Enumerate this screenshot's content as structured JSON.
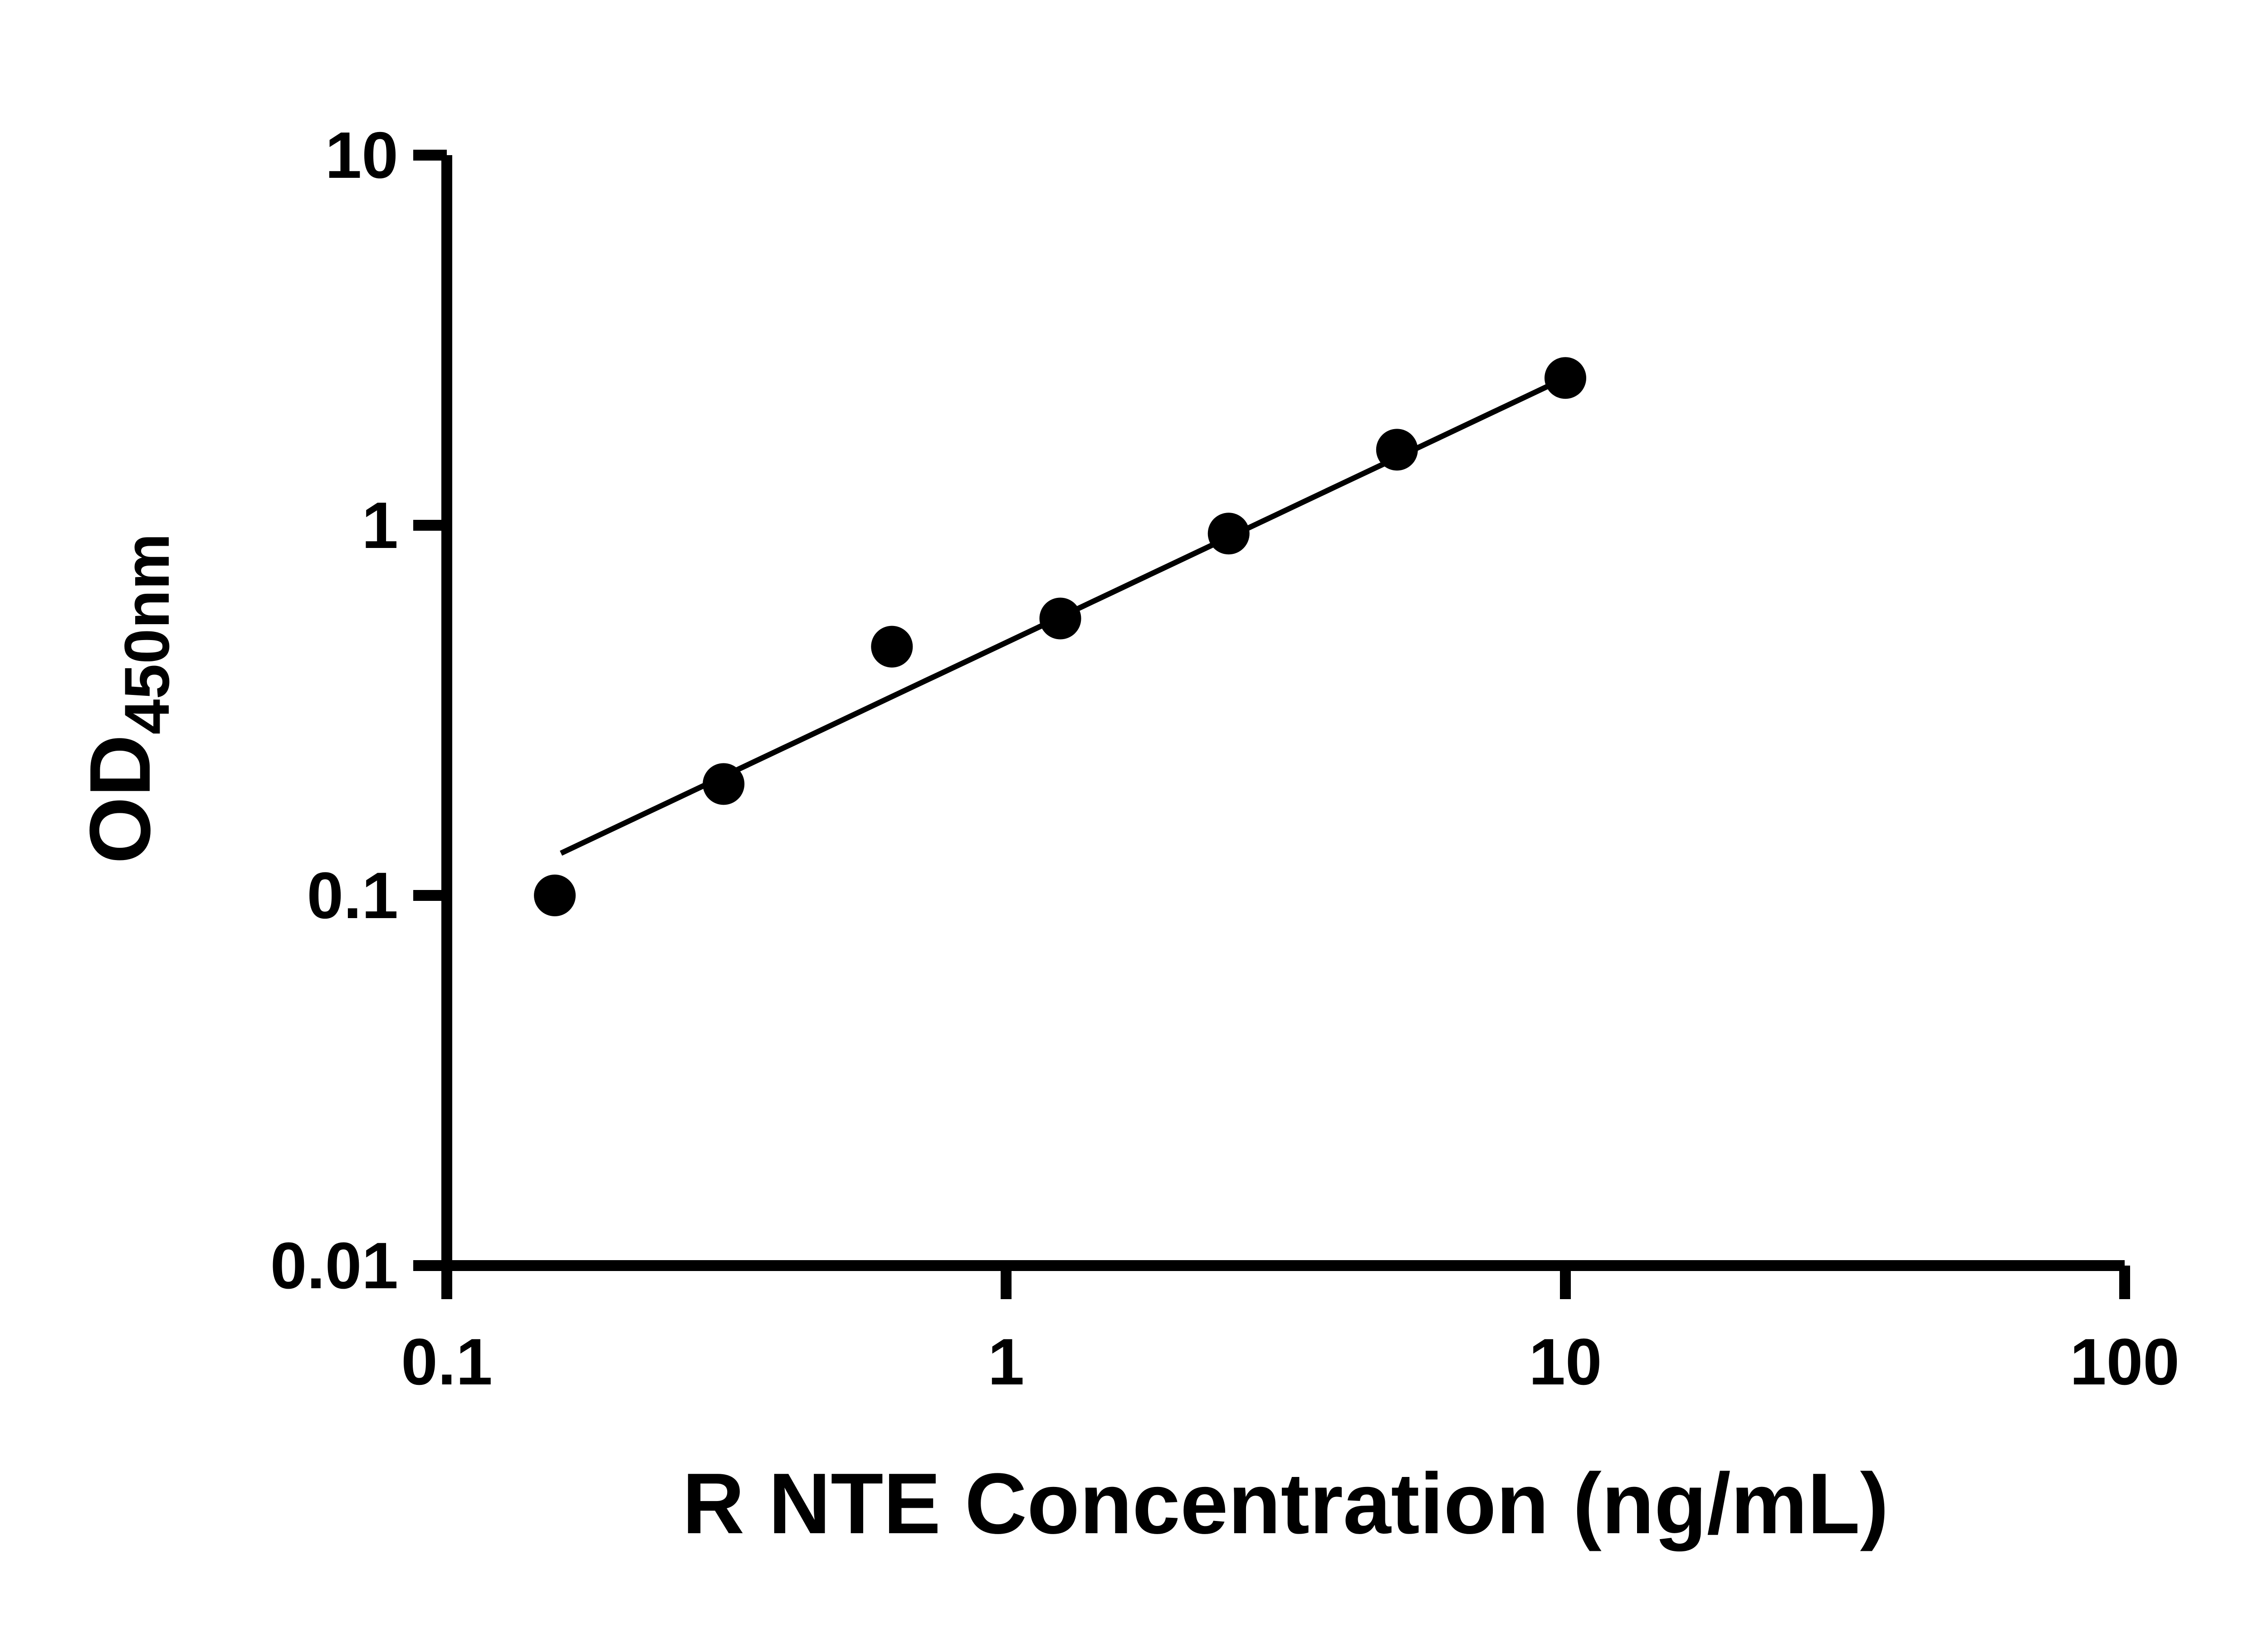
{
  "chart_data": {
    "type": "scatter",
    "title": "",
    "xlabel": "R NTE Concentration (ng/mL)",
    "ylabel": "OD450nm",
    "ylabel_main": "OD",
    "ylabel_sub": "450nm",
    "x_scale": "log",
    "y_scale": "log",
    "xlim": [
      0.1,
      100
    ],
    "ylim": [
      0.01,
      10
    ],
    "grid": false,
    "legend": false,
    "x_ticks": [
      {
        "value": 0.1,
        "label": "0.1"
      },
      {
        "value": 1,
        "label": "1"
      },
      {
        "value": 10,
        "label": "10"
      },
      {
        "value": 100,
        "label": "100"
      }
    ],
    "y_ticks": [
      {
        "value": 0.01,
        "label": "0.01"
      },
      {
        "value": 0.1,
        "label": "0.1"
      },
      {
        "value": 1,
        "label": "1"
      },
      {
        "value": 10,
        "label": "10"
      }
    ],
    "series": [
      {
        "name": "standard-curve-points",
        "x": [
          0.156,
          0.3125,
          0.625,
          1.25,
          2.5,
          5,
          10
        ],
        "y": [
          0.1,
          0.2,
          0.47,
          0.56,
          0.95,
          1.6,
          2.5
        ]
      }
    ],
    "fit_line": {
      "model": "power",
      "a": 0.482,
      "b": 0.715,
      "x_start": 0.16,
      "x_end": 10.3
    },
    "marker_color": "#000000",
    "line_color": "#000000",
    "axis_color": "#000000",
    "background_color": "#ffffff"
  }
}
